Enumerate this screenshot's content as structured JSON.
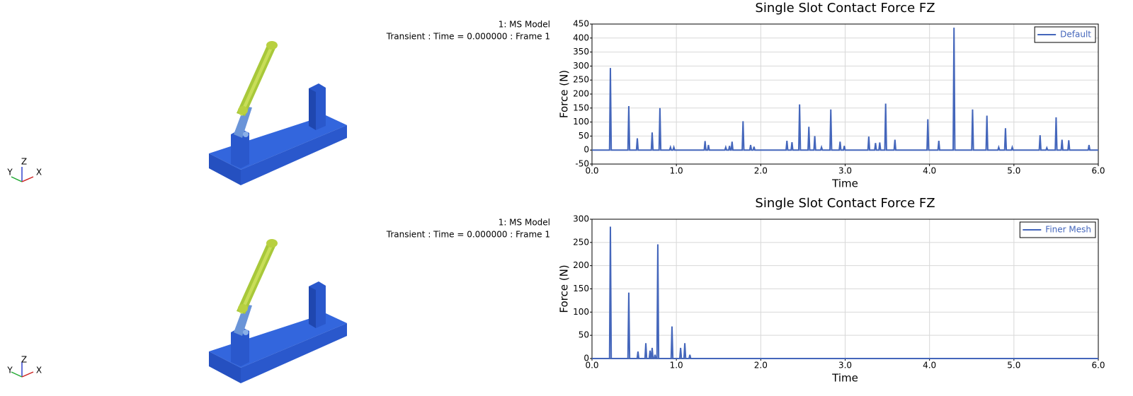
{
  "viewports": [
    {
      "model": "1: MS Model",
      "status": "Transient : Time = 0.000000 : Frame 1",
      "axes": [
        "Y",
        "Z",
        "X"
      ]
    },
    {
      "model": "1: MS Model",
      "status": "Transient : Time = 0.000000 : Frame 1",
      "axes": [
        "Y",
        "Z",
        "X"
      ]
    }
  ],
  "chart_data": [
    {
      "type": "line",
      "title": "Single Slot Contact Force FZ",
      "x_label": "Time",
      "y_label": "Force (N)",
      "xlim": [
        0,
        6
      ],
      "ylim": [
        -50,
        450
      ],
      "xticks": [
        {
          "value": 0,
          "label": "0.0"
        },
        {
          "value": 1,
          "label": "1.0"
        },
        {
          "value": 2,
          "label": "2.0"
        },
        {
          "value": 3,
          "label": "3.0"
        },
        {
          "value": 4,
          "label": "4.0"
        },
        {
          "value": 5,
          "label": "5.0"
        },
        {
          "value": 6,
          "label": "6.0"
        }
      ],
      "yticks": [
        -50,
        0,
        50,
        100,
        150,
        200,
        250,
        300,
        350,
        400,
        450
      ],
      "grid": true,
      "legend": "upper-right",
      "x": [
        0,
        0.208,
        0.218,
        0.228,
        0.426,
        0.436,
        0.446,
        0.527,
        0.537,
        0.547,
        0.703,
        0.713,
        0.723,
        0.795,
        0.805,
        0.815,
        0.92,
        0.93,
        0.94,
        0.96,
        0.97,
        0.98,
        1.33,
        1.34,
        1.35,
        1.37,
        1.38,
        1.39,
        1.575,
        1.585,
        1.595,
        1.62,
        1.63,
        1.64,
        1.65,
        1.66,
        1.67,
        1.78,
        1.79,
        1.8,
        1.87,
        1.88,
        1.89,
        1.91,
        1.92,
        1.93,
        2.3,
        2.31,
        2.32,
        2.36,
        2.37,
        2.38,
        2.45,
        2.46,
        2.47,
        2.56,
        2.57,
        2.58,
        2.63,
        2.64,
        2.65,
        2.71,
        2.72,
        2.73,
        2.82,
        2.83,
        2.84,
        2.93,
        2.94,
        2.95,
        2.98,
        2.99,
        3.0,
        3.27,
        3.28,
        3.29,
        3.35,
        3.36,
        3.37,
        3.4,
        3.41,
        3.42,
        3.47,
        3.48,
        3.49,
        3.58,
        3.59,
        3.6,
        3.97,
        3.98,
        3.99,
        4.1,
        4.11,
        4.12,
        4.28,
        4.29,
        4.3,
        4.5,
        4.51,
        4.52,
        4.67,
        4.68,
        4.69,
        4.81,
        4.82,
        4.83,
        4.89,
        4.9,
        4.91,
        4.97,
        4.98,
        4.99,
        5.3,
        5.31,
        5.32,
        5.38,
        5.39,
        5.4,
        5.49,
        5.5,
        5.51,
        5.56,
        5.57,
        5.58,
        5.64,
        5.65,
        5.66,
        5.88,
        5.89,
        5.9,
        6
      ],
      "series": [
        {
          "name": "Default",
          "color": "#4466bb",
          "values": [
            0,
            0,
            293,
            0,
            0,
            157,
            0,
            0,
            42,
            0,
            0,
            63,
            0,
            0,
            150,
            0,
            0,
            10,
            0,
            0,
            10,
            0,
            0,
            32,
            0,
            0,
            18,
            0,
            0,
            10,
            0,
            0,
            15,
            0,
            0,
            30,
            0,
            0,
            103,
            0,
            0,
            18,
            0,
            0,
            12,
            0,
            0,
            33,
            0,
            0,
            28,
            0,
            0,
            163,
            0,
            0,
            83,
            0,
            0,
            50,
            0,
            0,
            10,
            0,
            0,
            145,
            0,
            0,
            30,
            0,
            0,
            15,
            0,
            0,
            48,
            0,
            0,
            25,
            0,
            0,
            27,
            0,
            0,
            166,
            0,
            0,
            37,
            0,
            0,
            110,
            0,
            0,
            33,
            0,
            0,
            437,
            0,
            0,
            145,
            0,
            0,
            123,
            0,
            0,
            10,
            0,
            0,
            78,
            0,
            0,
            10,
            0,
            0,
            53,
            0,
            0,
            8,
            0,
            0,
            117,
            0,
            0,
            37,
            0,
            0,
            35,
            0,
            0,
            18,
            0,
            0
          ]
        }
      ]
    },
    {
      "type": "line",
      "title": "Single Slot Contact Force FZ",
      "x_label": "Time",
      "y_label": "Force (N)",
      "xlim": [
        0,
        6
      ],
      "ylim": [
        0,
        300
      ],
      "xticks": [
        {
          "value": 0,
          "label": "0.0"
        },
        {
          "value": 1,
          "label": "1.0"
        },
        {
          "value": 2,
          "label": "2.0"
        },
        {
          "value": 3,
          "label": "3.0"
        },
        {
          "value": 4,
          "label": "4.0"
        },
        {
          "value": 5,
          "label": "5.0"
        },
        {
          "value": 6,
          "label": "6.0"
        }
      ],
      "yticks": [
        0,
        50,
        100,
        150,
        200,
        250,
        300
      ],
      "grid": true,
      "legend": "upper-right",
      "x": [
        0,
        0.208,
        0.218,
        0.228,
        0.426,
        0.436,
        0.446,
        0.535,
        0.545,
        0.555,
        0.628,
        0.638,
        0.648,
        0.678,
        0.688,
        0.698,
        0.703,
        0.713,
        0.723,
        0.737,
        0.747,
        0.757,
        0.77,
        0.78,
        0.79,
        0.938,
        0.948,
        0.958,
        1.04,
        1.05,
        1.06,
        1.09,
        1.1,
        1.11,
        1.15,
        1.16,
        1.17,
        6
      ],
      "series": [
        {
          "name": "Finer Mesh",
          "color": "#4466bb",
          "values": [
            0,
            0,
            284,
            0,
            0,
            142,
            0,
            0,
            15,
            0,
            0,
            33,
            0,
            0,
            17,
            0,
            0,
            23,
            0,
            0,
            8,
            0,
            0,
            246,
            0,
            0,
            69,
            0,
            0,
            23,
            0,
            0,
            33,
            0,
            0,
            8,
            0,
            0
          ]
        }
      ]
    }
  ]
}
